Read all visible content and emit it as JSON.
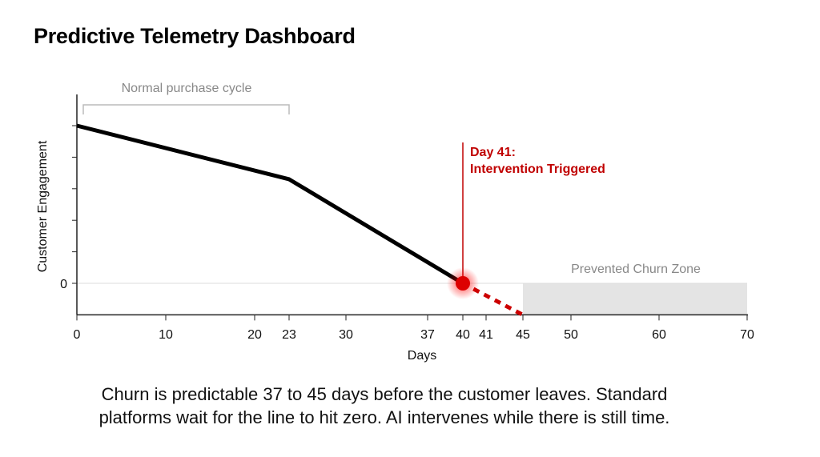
{
  "title": "Predictive Telemetry Dashboard",
  "caption_lines": [
    "Churn is predictable 37 to 45 days before the customer leaves. Standard",
    "platforms wait for the line to hit zero. AI intervenes while there is still time."
  ],
  "chart_data": {
    "type": "line",
    "xlabel": "Days",
    "ylabel": "Customer Engagement",
    "x_ticks": [
      0,
      10,
      20,
      23,
      30,
      37,
      40,
      41,
      45,
      50,
      60,
      70
    ],
    "y_tick_labels": [
      "0"
    ],
    "xlim": [
      0,
      70
    ],
    "ylim": [
      -1,
      6
    ],
    "series": [
      {
        "style": "solid",
        "color": "#000000",
        "points": [
          [
            0,
            5
          ],
          [
            23,
            3.3
          ],
          [
            40,
            0
          ]
        ]
      },
      {
        "style": "dashed",
        "color": "#cc0000",
        "points": [
          [
            40,
            0
          ],
          [
            45,
            -1
          ]
        ]
      }
    ],
    "marker": {
      "x": 40,
      "y": 0,
      "color": "#dd0000"
    },
    "annotations": {
      "normal_cycle": {
        "label": "Normal purchase cycle",
        "from": 0,
        "to": 23
      },
      "intervention": {
        "line1": "Day 41:",
        "line2": "Intervention Triggered",
        "color": "#c00000"
      },
      "churn_zone": {
        "label": "Prevented Churn Zone",
        "from": 45,
        "to": 70,
        "color": "#e4e4e4"
      }
    },
    "grid": false
  }
}
